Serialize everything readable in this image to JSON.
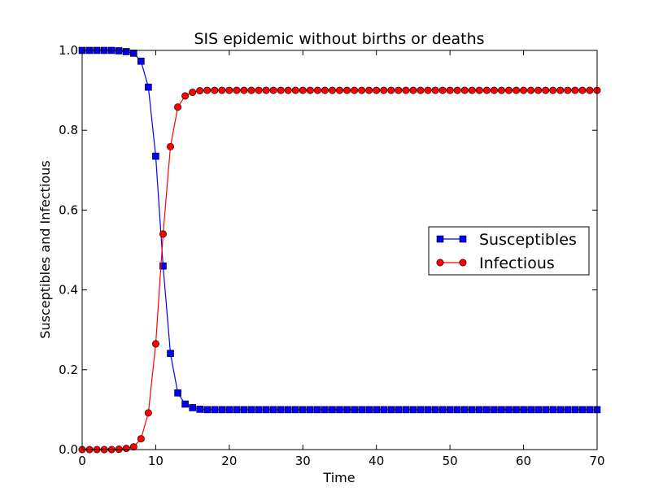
{
  "chart_data": {
    "type": "line",
    "title": "SIS epidemic without births or deaths",
    "xlabel": "Time",
    "ylabel": "Susceptibles and Infectious",
    "xlim": [
      0,
      70
    ],
    "ylim": [
      0.0,
      1.0
    ],
    "xticks": [
      0,
      10,
      20,
      30,
      40,
      50,
      60,
      70
    ],
    "xtick_labels": [
      "0",
      "10",
      "20",
      "30",
      "40",
      "50",
      "60",
      "70"
    ],
    "yticks": [
      0.0,
      0.2,
      0.4,
      0.6,
      0.8,
      1.0
    ],
    "ytick_labels": [
      "0.0",
      "0.2",
      "0.4",
      "0.6",
      "0.8",
      "1.0"
    ],
    "legend_position": "center-right",
    "x": [
      0,
      1,
      2,
      3,
      4,
      5,
      6,
      7,
      8,
      9,
      10,
      11,
      12,
      13,
      14,
      15,
      16,
      17,
      18,
      19,
      20,
      21,
      22,
      23,
      24,
      25,
      26,
      27,
      28,
      29,
      30,
      31,
      32,
      33,
      34,
      35,
      36,
      37,
      38,
      39,
      40,
      41,
      42,
      43,
      44,
      45,
      46,
      47,
      48,
      49,
      50,
      51,
      52,
      53,
      54,
      55,
      56,
      57,
      58,
      59,
      60,
      61,
      62,
      63,
      64,
      65,
      66,
      67,
      68,
      69,
      70
    ],
    "series": [
      {
        "name": "Susceptibles",
        "color": "#0000ff",
        "marker": "square",
        "values": [
          1.0,
          1.0,
          1.0,
          1.0,
          1.0,
          0.999,
          0.997,
          0.993,
          0.973,
          0.908,
          0.735,
          0.46,
          0.241,
          0.142,
          0.114,
          0.105,
          0.101,
          0.1,
          0.1,
          0.1,
          0.1,
          0.1,
          0.1,
          0.1,
          0.1,
          0.1,
          0.1,
          0.1,
          0.1,
          0.1,
          0.1,
          0.1,
          0.1,
          0.1,
          0.1,
          0.1,
          0.1,
          0.1,
          0.1,
          0.1,
          0.1,
          0.1,
          0.1,
          0.1,
          0.1,
          0.1,
          0.1,
          0.1,
          0.1,
          0.1,
          0.1,
          0.1,
          0.1,
          0.1,
          0.1,
          0.1,
          0.1,
          0.1,
          0.1,
          0.1,
          0.1,
          0.1,
          0.1,
          0.1,
          0.1,
          0.1,
          0.1,
          0.1,
          0.1,
          0.1,
          0.1
        ]
      },
      {
        "name": "Infectious",
        "color": "#ff0000",
        "marker": "circle",
        "values": [
          0.0,
          0.0,
          0.0,
          0.0,
          0.0,
          0.001,
          0.003,
          0.007,
          0.027,
          0.092,
          0.265,
          0.54,
          0.759,
          0.858,
          0.886,
          0.895,
          0.899,
          0.9,
          0.9,
          0.9,
          0.9,
          0.9,
          0.9,
          0.9,
          0.9,
          0.9,
          0.9,
          0.9,
          0.9,
          0.9,
          0.9,
          0.9,
          0.9,
          0.9,
          0.9,
          0.9,
          0.9,
          0.9,
          0.9,
          0.9,
          0.9,
          0.9,
          0.9,
          0.9,
          0.9,
          0.9,
          0.9,
          0.9,
          0.9,
          0.9,
          0.9,
          0.9,
          0.9,
          0.9,
          0.9,
          0.9,
          0.9,
          0.9,
          0.9,
          0.9,
          0.9,
          0.9,
          0.9,
          0.9,
          0.9,
          0.9,
          0.9,
          0.9,
          0.9,
          0.9,
          0.9
        ]
      }
    ]
  }
}
